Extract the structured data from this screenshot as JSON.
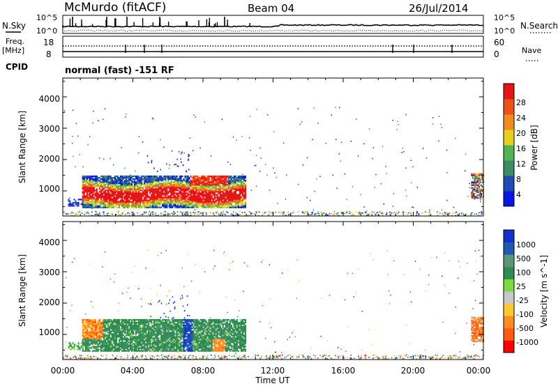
{
  "header": {
    "station": "McMurdo (fitACF)",
    "beam": "Beam 04",
    "date": "26/Jul/2014"
  },
  "top_panel": {
    "left_label": "N.Sky",
    "right_label": "N.Search",
    "left_ticks": [
      "10^5",
      "10^0"
    ],
    "right_ticks": [
      "10^5",
      "10^0"
    ]
  },
  "freq_panel": {
    "left_label_1": "Freq.",
    "left_label_2": "[MHz]",
    "right_label": "Nave",
    "left_ticks": [
      "18",
      "8"
    ],
    "right_ticks": [
      "60",
      "0"
    ]
  },
  "cpid": {
    "label": "CPID",
    "text": "normal (fast) -151 RF"
  },
  "colors": {
    "power_scale": [
      "#0a14e6",
      "#1e4bb4",
      "#3c8c64",
      "#50b450",
      "#e6d21e",
      "#f08c1e",
      "#f05014",
      "#e61414"
    ],
    "velocity_scale": [
      "#ff0000",
      "#ff5a14",
      "#ff8c1e",
      "#ffc832",
      "#c8c8c8",
      "#78dc3c",
      "#2d8c50",
      "#5a9678",
      "#1e5ab4",
      "#1432c8"
    ]
  },
  "chart_data": [
    {
      "type": "heatmap",
      "title": "",
      "xlabel": "",
      "ylabel": "Slant Range [km]",
      "xlim_hours": [
        0,
        24
      ],
      "ylim_km": [
        200,
        4600
      ],
      "x_ticks": [
        "00:00",
        "04:00",
        "08:00",
        "12:00",
        "16:00",
        "20:00",
        "00:00"
      ],
      "y_ticks": [
        "1000",
        "2000",
        "3000",
        "4000"
      ],
      "colorbar": {
        "label": "Power [dB]",
        "ticks": [
          "28",
          "24",
          "20",
          "16",
          "12",
          "8",
          "4"
        ],
        "range": [
          0,
          32
        ]
      },
      "regions": [
        {
          "t0": 1.1,
          "t1": 10.4,
          "r0": 550,
          "r1": 1450,
          "level": "high"
        },
        {
          "t0": 0.3,
          "t1": 1.1,
          "r0": 550,
          "r1": 800,
          "level": "low"
        },
        {
          "t0": 23.3,
          "t1": 24.0,
          "r0": 800,
          "r1": 1600,
          "level": "mid"
        },
        {
          "t0": 0.0,
          "t1": 24.0,
          "r0": 200,
          "r1": 350,
          "level": "low"
        }
      ]
    },
    {
      "type": "heatmap",
      "title": "",
      "xlabel": "Time UT",
      "ylabel": "Slant Range [km]",
      "xlim_hours": [
        0,
        24
      ],
      "ylim_km": [
        200,
        4600
      ],
      "x_ticks": [
        "00:00",
        "04:00",
        "08:00",
        "12:00",
        "16:00",
        "20:00",
        "00:00"
      ],
      "y_ticks": [
        "1000",
        "2000",
        "3000",
        "4000"
      ],
      "colorbar": {
        "label": "Velocity [m s^-1]",
        "ticks": [
          "1000",
          "500",
          "100",
          "25",
          "-25",
          "-100",
          "-500",
          "-1000"
        ],
        "range": [
          -1500,
          1500
        ]
      },
      "regions": [
        {
          "t0": 1.1,
          "t1": 10.4,
          "r0": 550,
          "r1": 1450,
          "level": "slow-positive"
        },
        {
          "t0": 1.1,
          "t1": 2.3,
          "r0": 900,
          "r1": 1600,
          "level": "negative"
        },
        {
          "t0": 6.8,
          "t1": 7.4,
          "r0": 550,
          "r1": 1400,
          "level": "fast-positive"
        },
        {
          "t0": 23.3,
          "t1": 24.0,
          "r0": 800,
          "r1": 1600,
          "level": "negative"
        }
      ]
    }
  ],
  "x_axis_label": "Time UT"
}
